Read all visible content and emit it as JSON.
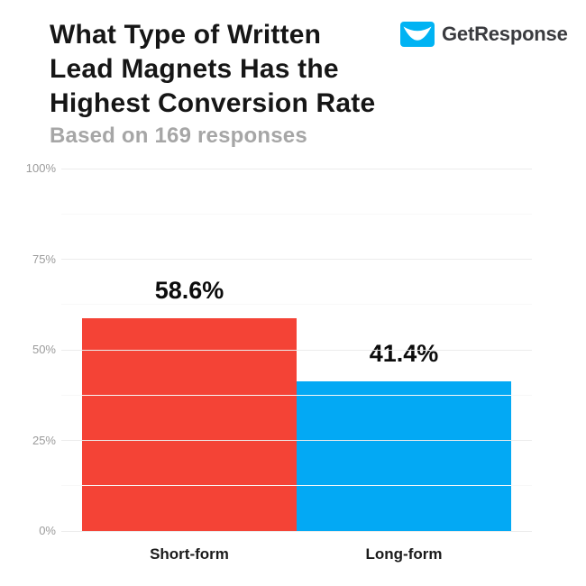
{
  "header": {
    "title_lines": [
      "What Type of Written",
      "Lead Magnets Has the",
      "Highest Conversion Rate"
    ],
    "subtitle": "Based on 169 responses"
  },
  "logo": {
    "text": "GetResponse",
    "icon_color": "#00b3f3",
    "smile_color": "#ffffff"
  },
  "chart_data": {
    "type": "bar",
    "title": "What Type of Written Lead Magnets Has the Highest Conversion Rate",
    "subtitle": "Based on 169 responses",
    "categories": [
      "Short-form",
      "Long-form"
    ],
    "values": [
      58.6,
      41.4
    ],
    "value_labels": [
      "58.6%",
      "41.4%"
    ],
    "bar_colors": [
      "#f44336",
      "#03a9f4"
    ],
    "xlabel": "",
    "ylabel": "",
    "ylim": [
      0,
      100
    ],
    "yticks": [
      "0%",
      "25%",
      "50%",
      "75%",
      "100%"
    ],
    "ytick_values": [
      0,
      25,
      50,
      75,
      100
    ],
    "grid": true,
    "legend": false
  }
}
